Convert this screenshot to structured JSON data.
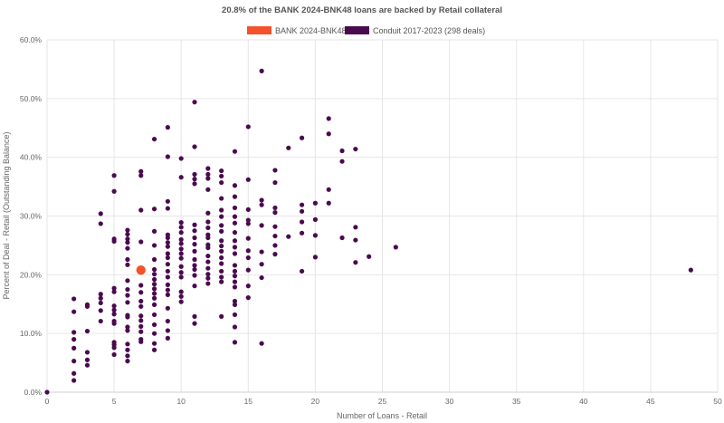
{
  "chart_data": {
    "type": "scatter",
    "title": "20.8% of the BANK 2024-BNK48 loans are backed by Retail collateral",
    "xlabel": "Number of Loans - Retail",
    "ylabel": "Percent of Deal - Retail (Outstanding Balance)",
    "xlim": [
      0,
      50
    ],
    "ylim": [
      0,
      60
    ],
    "x_ticks": [
      "0",
      "5",
      "10",
      "15",
      "20",
      "25",
      "30",
      "35",
      "40",
      "45",
      "50"
    ],
    "y_ticks": [
      "0.0%",
      "10.0%",
      "20.0%",
      "30.0%",
      "40.0%",
      "50.0%",
      "60.0%"
    ],
    "grid": true,
    "legend_position": "top-center",
    "series": [
      {
        "name": "BANK 2024-BNK48",
        "color": "#f4512c",
        "points": [
          [
            7,
            20.8
          ]
        ]
      },
      {
        "name": "Conduit 2017-2023 (298 deals)",
        "color": "#4a0a4f",
        "points": [
          [
            0,
            0
          ],
          [
            2,
            2.0
          ],
          [
            2,
            3.2
          ],
          [
            2,
            5.3
          ],
          [
            2,
            7.5
          ],
          [
            2,
            9.0
          ],
          [
            2,
            10.2
          ],
          [
            2,
            13.7
          ],
          [
            2,
            15.9
          ],
          [
            3,
            4.6
          ],
          [
            3,
            5.5
          ],
          [
            3,
            6.8
          ],
          [
            3,
            10.4
          ],
          [
            3,
            14.6
          ],
          [
            3,
            14.9
          ],
          [
            4,
            12.1
          ],
          [
            4,
            13.9
          ],
          [
            4,
            15.2
          ],
          [
            4,
            16.0
          ],
          [
            4,
            16.7
          ],
          [
            4,
            28.7
          ],
          [
            4,
            30.4
          ],
          [
            5,
            6.4
          ],
          [
            5,
            7.6
          ],
          [
            5,
            8.1
          ],
          [
            5,
            8.5
          ],
          [
            5,
            11.7
          ],
          [
            5,
            12.1
          ],
          [
            5,
            13.3
          ],
          [
            5,
            14.0
          ],
          [
            5,
            14.7
          ],
          [
            5,
            17.1
          ],
          [
            5,
            17.7
          ],
          [
            5,
            25.7
          ],
          [
            5,
            26.1
          ],
          [
            5,
            34.2
          ],
          [
            5,
            36.9
          ],
          [
            6,
            5.3
          ],
          [
            6,
            6.2
          ],
          [
            6,
            7.2
          ],
          [
            6,
            8.2
          ],
          [
            6,
            10.5
          ],
          [
            6,
            11.1
          ],
          [
            6,
            12.8
          ],
          [
            6,
            13.1
          ],
          [
            6,
            15.3
          ],
          [
            6,
            16.5
          ],
          [
            6,
            17.5
          ],
          [
            6,
            19.0
          ],
          [
            6,
            21.7
          ],
          [
            6,
            22.6
          ],
          [
            6,
            24.5
          ],
          [
            6,
            25.5
          ],
          [
            6,
            26.1
          ],
          [
            6,
            26.9
          ],
          [
            6,
            27.6
          ],
          [
            7,
            8.6
          ],
          [
            7,
            9.0
          ],
          [
            7,
            10.3
          ],
          [
            7,
            11.2
          ],
          [
            7,
            12.2
          ],
          [
            7,
            13.0
          ],
          [
            7,
            14.6
          ],
          [
            7,
            15.5
          ],
          [
            7,
            17.0
          ],
          [
            7,
            18.2
          ],
          [
            7,
            25.6
          ],
          [
            7,
            31.0
          ],
          [
            7,
            36.9
          ],
          [
            7,
            37.6
          ],
          [
            8,
            7.2
          ],
          [
            8,
            8.3
          ],
          [
            8,
            10.0
          ],
          [
            8,
            11.5
          ],
          [
            8,
            13.2
          ],
          [
            8,
            14.9
          ],
          [
            8,
            16.0
          ],
          [
            8,
            16.8
          ],
          [
            8,
            17.6
          ],
          [
            8,
            18.4
          ],
          [
            8,
            19.2
          ],
          [
            8,
            20.1
          ],
          [
            8,
            20.9
          ],
          [
            8,
            22.6
          ],
          [
            8,
            25.0
          ],
          [
            8,
            27.4
          ],
          [
            8,
            31.2
          ],
          [
            8,
            43.1
          ],
          [
            9,
            9.2
          ],
          [
            9,
            10.5
          ],
          [
            9,
            12.1
          ],
          [
            9,
            14.3
          ],
          [
            9,
            16.6
          ],
          [
            9,
            17.4
          ],
          [
            9,
            18.3
          ],
          [
            9,
            19.6
          ],
          [
            9,
            20.6
          ],
          [
            9,
            21.8
          ],
          [
            9,
            22.9
          ],
          [
            9,
            23.6
          ],
          [
            9,
            24.8
          ],
          [
            9,
            25.5
          ],
          [
            9,
            26.3
          ],
          [
            9,
            26.8
          ],
          [
            9,
            31.3
          ],
          [
            9,
            32.5
          ],
          [
            9,
            40.1
          ],
          [
            9,
            45.1
          ],
          [
            10,
            15.4
          ],
          [
            10,
            16.3
          ],
          [
            10,
            17.1
          ],
          [
            10,
            19.6
          ],
          [
            10,
            20.4
          ],
          [
            10,
            21.4
          ],
          [
            10,
            22.8
          ],
          [
            10,
            23.6
          ],
          [
            10,
            24.4
          ],
          [
            10,
            25.3
          ],
          [
            10,
            26.0
          ],
          [
            10,
            27.2
          ],
          [
            10,
            28.1
          ],
          [
            10,
            28.9
          ],
          [
            10,
            36.6
          ],
          [
            10,
            39.8
          ],
          [
            11,
            11.7
          ],
          [
            11,
            12.9
          ],
          [
            11,
            18.1
          ],
          [
            11,
            19.9
          ],
          [
            11,
            20.9
          ],
          [
            11,
            21.6
          ],
          [
            11,
            22.6
          ],
          [
            11,
            24.0
          ],
          [
            11,
            25.2
          ],
          [
            11,
            26.3
          ],
          [
            11,
            27.5
          ],
          [
            11,
            28.5
          ],
          [
            11,
            35.5
          ],
          [
            11,
            36.3
          ],
          [
            11,
            37.1
          ],
          [
            11,
            41.8
          ],
          [
            11,
            49.4
          ],
          [
            12,
            18.5
          ],
          [
            12,
            19.4
          ],
          [
            12,
            20.1
          ],
          [
            12,
            21.1
          ],
          [
            12,
            22.2
          ],
          [
            12,
            23.2
          ],
          [
            12,
            24.6
          ],
          [
            12,
            25.1
          ],
          [
            12,
            26.3
          ],
          [
            12,
            26.8
          ],
          [
            12,
            28.0
          ],
          [
            12,
            29.0
          ],
          [
            12,
            30.5
          ],
          [
            12,
            34.5
          ],
          [
            12,
            36.4
          ],
          [
            12,
            37.1
          ],
          [
            12,
            38.1
          ],
          [
            13,
            12.9
          ],
          [
            13,
            18.8
          ],
          [
            13,
            19.6
          ],
          [
            13,
            20.6
          ],
          [
            13,
            21.9
          ],
          [
            13,
            22.9
          ],
          [
            13,
            24.0
          ],
          [
            13,
            24.9
          ],
          [
            13,
            25.8
          ],
          [
            13,
            27.4
          ],
          [
            13,
            28.4
          ],
          [
            13,
            29.9
          ],
          [
            13,
            31.0
          ],
          [
            13,
            33.0
          ],
          [
            13,
            35.7
          ],
          [
            13,
            36.8
          ],
          [
            13,
            37.7
          ],
          [
            14,
            8.5
          ],
          [
            14,
            11.1
          ],
          [
            14,
            13.2
          ],
          [
            14,
            14.9
          ],
          [
            14,
            15.5
          ],
          [
            14,
            17.9
          ],
          [
            14,
            18.8
          ],
          [
            14,
            19.8
          ],
          [
            14,
            20.6
          ],
          [
            14,
            21.6
          ],
          [
            14,
            23.6
          ],
          [
            14,
            24.7
          ],
          [
            14,
            25.8
          ],
          [
            14,
            27.2
          ],
          [
            14,
            28.8
          ],
          [
            14,
            29.9
          ],
          [
            14,
            31.4
          ],
          [
            14,
            33.3
          ],
          [
            14,
            35.2
          ],
          [
            14,
            41.0
          ],
          [
            15,
            16.1
          ],
          [
            15,
            18.1
          ],
          [
            15,
            20.8
          ],
          [
            15,
            22.9
          ],
          [
            15,
            24.1
          ],
          [
            15,
            26.2
          ],
          [
            15,
            28.7
          ],
          [
            15,
            29.3
          ],
          [
            15,
            31.1
          ],
          [
            15,
            36.2
          ],
          [
            15,
            45.2
          ],
          [
            16,
            8.3
          ],
          [
            16,
            19.5
          ],
          [
            16,
            21.8
          ],
          [
            16,
            23.9
          ],
          [
            16,
            28.4
          ],
          [
            16,
            31.9
          ],
          [
            16,
            32.7
          ],
          [
            16,
            54.7
          ],
          [
            17,
            23.5
          ],
          [
            17,
            25.0
          ],
          [
            17,
            26.6
          ],
          [
            17,
            28.2
          ],
          [
            17,
            30.6
          ],
          [
            17,
            31.4
          ],
          [
            17,
            35.7
          ],
          [
            17,
            37.8
          ],
          [
            18,
            26.5
          ],
          [
            18,
            41.6
          ],
          [
            19,
            20.6
          ],
          [
            19,
            27.1
          ],
          [
            19,
            29.0
          ],
          [
            19,
            30.8
          ],
          [
            19,
            31.9
          ],
          [
            19,
            43.3
          ],
          [
            20,
            23.0
          ],
          [
            20,
            26.7
          ],
          [
            20,
            29.4
          ],
          [
            20,
            32.2
          ],
          [
            21,
            32.2
          ],
          [
            21,
            34.5
          ],
          [
            21,
            44.0
          ],
          [
            21,
            46.6
          ],
          [
            22,
            26.3
          ],
          [
            22,
            39.3
          ],
          [
            22,
            41.1
          ],
          [
            23,
            22.1
          ],
          [
            23,
            25.9
          ],
          [
            23,
            28.1
          ],
          [
            23,
            41.4
          ],
          [
            24,
            23.1
          ],
          [
            26,
            24.7
          ],
          [
            48,
            20.8
          ]
        ]
      }
    ]
  }
}
